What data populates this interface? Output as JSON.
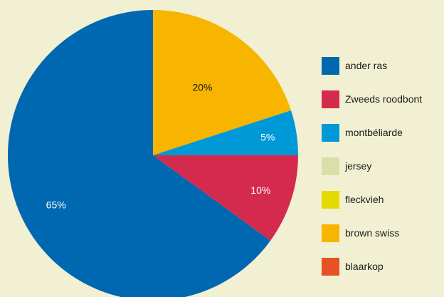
{
  "chart_data": {
    "type": "pie",
    "title": "",
    "slices": [
      {
        "label": "brown swiss",
        "value": 20,
        "display": "20%",
        "color": "#f7b500"
      },
      {
        "label": "montbéliarde",
        "value": 5,
        "display": "5%",
        "color": "#0099d8"
      },
      {
        "label": "Zweeds roodbont",
        "value": 10,
        "display": "10%",
        "color": "#d42a4e"
      },
      {
        "label": "ander ras",
        "value": 65,
        "display": "65%",
        "color": "#0067b1"
      }
    ],
    "legend": {
      "placement": "right",
      "items": [
        {
          "label": "ander ras",
          "color": "#0067b1"
        },
        {
          "label": "Zweeds roodbont",
          "color": "#d42a4e"
        },
        {
          "label": "montbéliarde",
          "color": "#0099d8"
        },
        {
          "label": "jersey",
          "color": "#d8e0a8"
        },
        {
          "label": "fleckvieh",
          "color": "#e5db00"
        },
        {
          "label": "brown swiss",
          "color": "#f7b500"
        },
        {
          "label": "blaarkop",
          "color": "#e65224"
        }
      ]
    }
  }
}
